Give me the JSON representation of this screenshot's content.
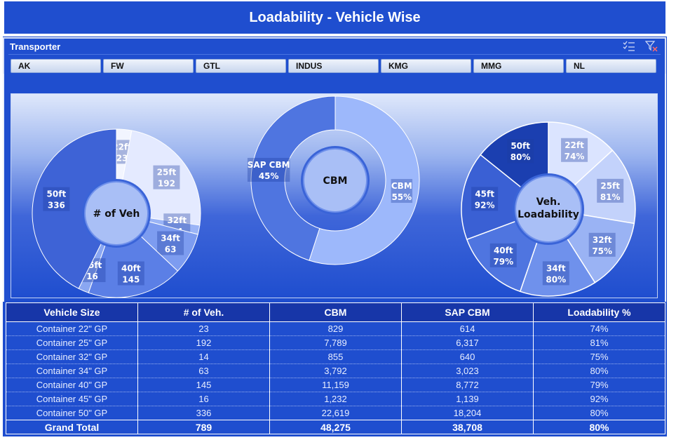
{
  "title": "Loadability - Vehicle Wise",
  "slicer": {
    "title": "Transporter",
    "icons": [
      "multi-select-icon",
      "clear-filter-icon"
    ],
    "buttons": [
      "AK",
      "FW",
      "GTL",
      "INDUS",
      "KMG",
      "MMG",
      "NL"
    ]
  },
  "chart_data": [
    {
      "type": "pie",
      "title": "# of Veh",
      "categories": [
        "22ft",
        "25ft",
        "32ft",
        "34ft",
        "40ft",
        "45ft",
        "50ft"
      ],
      "values": [
        23,
        192,
        14,
        63,
        145,
        16,
        336
      ],
      "labels": [
        {
          "cat": "22ft",
          "val": "23"
        },
        {
          "cat": "25ft",
          "val": "192"
        },
        {
          "cat": "32ft",
          "val": "14"
        },
        {
          "cat": "34ft",
          "val": "63"
        },
        {
          "cat": "40ft",
          "val": "145"
        },
        {
          "cat": "45ft",
          "val": "16"
        },
        {
          "cat": "50ft",
          "val": "336"
        }
      ],
      "colors": [
        "#f2f5ff",
        "#e4eaff",
        "#9ab4f6",
        "#7d9cf0",
        "#5b7fe6",
        "#8aa7f2",
        "#3e63d6"
      ]
    },
    {
      "type": "pie",
      "title": "CBM",
      "categories": [
        "CBM",
        "SAP CBM"
      ],
      "values": [
        55,
        45
      ],
      "labels": [
        {
          "cat": "CBM",
          "val": "55%"
        },
        {
          "cat": "SAP CBM",
          "val": "45%"
        }
      ],
      "colors": [
        "#9db8fb",
        "#4f75e0"
      ]
    },
    {
      "type": "pie",
      "title": "Veh. Loadability",
      "categories": [
        "22ft",
        "25ft",
        "32ft",
        "34ft",
        "40ft",
        "45ft",
        "50ft"
      ],
      "values": [
        74,
        81,
        75,
        80,
        79,
        92,
        80
      ],
      "labels": [
        {
          "cat": "22ft",
          "val": "74%"
        },
        {
          "cat": "25ft",
          "val": "81%"
        },
        {
          "cat": "32ft",
          "val": "75%"
        },
        {
          "cat": "34ft",
          "val": "80%"
        },
        {
          "cat": "40ft",
          "val": "79%"
        },
        {
          "cat": "45ft",
          "val": "92%"
        },
        {
          "cat": "50ft",
          "val": "80%"
        }
      ],
      "colors": [
        "#dbe4ff",
        "#c3d2fb",
        "#9ab3f4",
        "#6f91ec",
        "#4f75e0",
        "#3a60d4",
        "#1b3fb0"
      ]
    }
  ],
  "table": {
    "headers": [
      "Vehicle Size",
      "# of Veh.",
      "CBM",
      "SAP CBM",
      "Loadability %"
    ],
    "rows": [
      [
        "Container 22\" GP",
        "23",
        "829",
        "614",
        "74%"
      ],
      [
        "Container 25\" GP",
        "192",
        "7,789",
        "6,317",
        "81%"
      ],
      [
        "Container 32\" GP",
        "14",
        "855",
        "640",
        "75%"
      ],
      [
        "Container 34\" GP",
        "63",
        "3,792",
        "3,023",
        "80%"
      ],
      [
        "Container 40\" GP",
        "145",
        "11,159",
        "8,772",
        "79%"
      ],
      [
        "Container 45\" GP",
        "16",
        "1,232",
        "1,139",
        "92%"
      ],
      [
        "Container 50\" GP",
        "336",
        "22,619",
        "18,204",
        "80%"
      ]
    ],
    "total": [
      "Grand Total",
      "789",
      "48,275",
      "38,708",
      "80%"
    ]
  }
}
